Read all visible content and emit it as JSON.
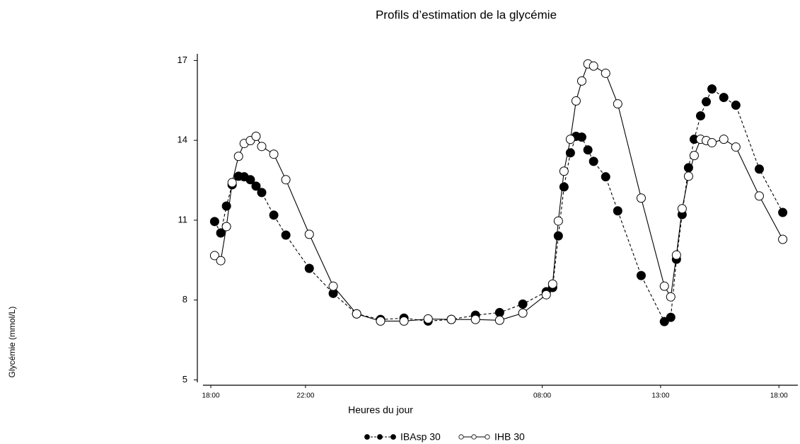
{
  "chart_data": {
    "type": "line",
    "title": "Profils d’estimation de la glycémie",
    "x_label": "Heures du jour",
    "y_label": "Glycémie (mmol/L)",
    "x": [
      0.16,
      0.42,
      0.66,
      0.9,
      1.17,
      1.41,
      1.67,
      1.91,
      2.15,
      2.66,
      3.17,
      4.16,
      5.17,
      6.16,
      7.17,
      8.16,
      9.18,
      10.16,
      11.18,
      12.2,
      13.18,
      14.17,
      14.44,
      14.68,
      14.92,
      15.19,
      15.43,
      15.67,
      15.93,
      16.17,
      16.68,
      17.19,
      18.18,
      19.16,
      19.43,
      19.67,
      19.91,
      20.18,
      20.42,
      20.69,
      20.93,
      21.17,
      21.67,
      22.18,
      23.17,
      24.16
    ],
    "series": [
      {
        "name": "IBAsp 30",
        "color": "#000000",
        "line_style": "dashed",
        "marker": "filled",
        "values": [
          10.95,
          10.52,
          11.53,
          12.33,
          12.65,
          12.63,
          12.52,
          12.28,
          12.04,
          11.19,
          10.44,
          9.19,
          8.25,
          7.48,
          7.27,
          7.32,
          7.21,
          7.27,
          7.43,
          7.53,
          7.85,
          8.31,
          8.47,
          10.41,
          12.25,
          13.53,
          14.15,
          14.12,
          13.64,
          13.21,
          12.63,
          11.35,
          8.92,
          7.19,
          7.35,
          9.53,
          11.21,
          12.97,
          14.04,
          14.92,
          15.45,
          15.93,
          15.61,
          15.32,
          12.92,
          11.29
        ]
      },
      {
        "name": "IHB 30",
        "color": "#000000",
        "line_style": "solid",
        "marker": "open",
        "values": [
          9.67,
          9.48,
          10.76,
          12.41,
          13.4,
          13.88,
          13.99,
          14.15,
          13.77,
          13.48,
          12.52,
          10.47,
          8.52,
          7.48,
          7.21,
          7.21,
          7.29,
          7.27,
          7.27,
          7.24,
          7.51,
          8.2,
          8.6,
          10.97,
          12.84,
          14.04,
          15.48,
          16.23,
          16.87,
          16.79,
          16.52,
          15.37,
          11.83,
          8.52,
          8.12,
          9.69,
          11.43,
          12.65,
          13.43,
          14.04,
          13.99,
          13.91,
          14.04,
          13.75,
          11.91,
          10.28
        ]
      }
    ],
    "xlim": [
      -0.33,
      24.8
    ],
    "ylim": [
      4.8,
      17.25
    ],
    "xticks": [
      {
        "value": 0,
        "label": "18:00"
      },
      {
        "value": 4,
        "label": "22:00"
      },
      {
        "value": 14,
        "label": "08:00"
      },
      {
        "value": 19,
        "label": "13:00"
      },
      {
        "value": 24,
        "label": "18:00"
      }
    ],
    "yticks": [
      5,
      8,
      11,
      14,
      17
    ],
    "grid": false,
    "legend": "bottom"
  }
}
